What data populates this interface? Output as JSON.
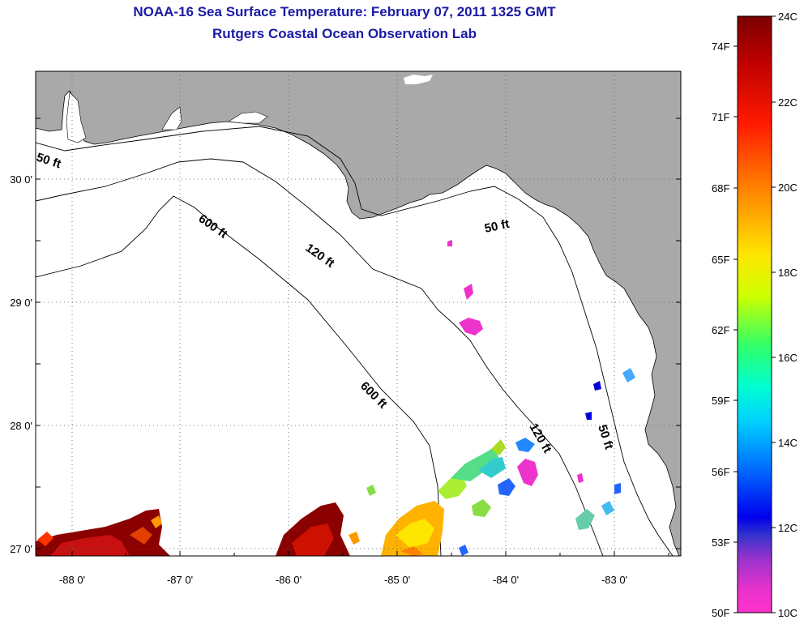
{
  "title": {
    "line1": "NOAA-16 Sea Surface Temperature:  February 07, 2011 1325 GMT",
    "line2": "Rutgers Coastal Ocean Observation Lab"
  },
  "map": {
    "lat_ticks": [
      "30 0'",
      "29 0'",
      "28 0'",
      "27 0'"
    ],
    "lon_ticks": [
      "-88 0'",
      "-87 0'",
      "-86 0'",
      "-85 0'",
      "-84 0'",
      "-83 0'"
    ],
    "contours": [
      "50 ft",
      "600 ft",
      "120 ft",
      "50 ft",
      "600 ft",
      "120 ft",
      "50 ft"
    ],
    "colors": {
      "land": "#a9a9a9",
      "ocean": "#ffffff",
      "title": "#1a1aa6"
    }
  },
  "colorbar": {
    "celsius": [
      "24C",
      "22C",
      "20C",
      "18C",
      "16C",
      "14C",
      "12C",
      "10C"
    ],
    "fahrenheit": [
      "74F",
      "71F",
      "68F",
      "65F",
      "62F",
      "59F",
      "56F",
      "53F",
      "50F"
    ]
  }
}
